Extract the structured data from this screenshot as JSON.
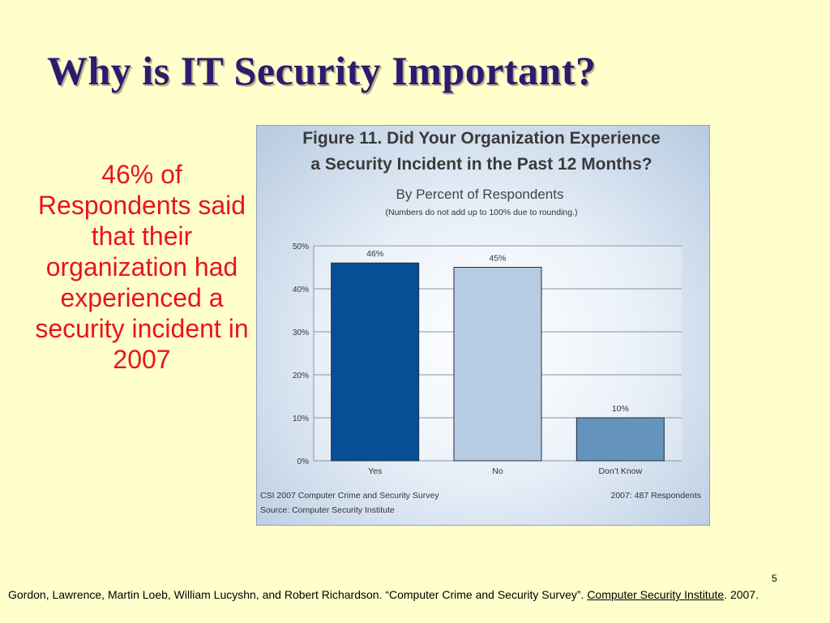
{
  "slide": {
    "title": "Why is IT Security Important?",
    "callout": "46% of Respondents said that their organization had experienced a security incident in 2007",
    "page_number": "5",
    "citation": {
      "text": "Gordon, Lawrence, Martin Loeb, William Lucyshn, and Robert Richardson. “Computer Crime and Security Survey”. ",
      "link": "Computer Security Institute",
      "after": ". 2007."
    }
  },
  "chart_data": {
    "type": "bar",
    "title": "Figure 11. Did Your Organization Experience",
    "title_line2": "a Security Incident in the Past 12 Months?",
    "subtitle": "By Percent of Respondents",
    "note": "(Numbers do not add up to 100% due to rounding.)",
    "categories": [
      "Yes",
      "No",
      "Don’t Know"
    ],
    "values": [
      46,
      45,
      10
    ],
    "data_labels": [
      "46%",
      "45%",
      "10%"
    ],
    "ylim": [
      0,
      50
    ],
    "yticks": [
      "0%",
      "10%",
      "20%",
      "30%",
      "40%",
      "50%"
    ],
    "grid": true,
    "bar_colors": [
      "#064E96",
      "#B5CCE2",
      "#6494BC"
    ],
    "footer_left_1": "CSI 2007 Computer Crime and Security Survey",
    "footer_left_2": "Source: Computer Security Institute",
    "footer_right": "2007: 487 Respondents"
  }
}
